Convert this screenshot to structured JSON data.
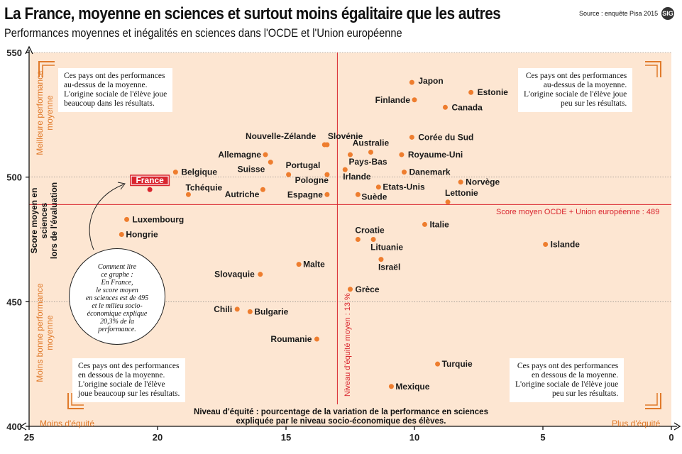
{
  "header": {
    "title": "La France, moyenne en sciences et surtout moins égalitaire que les autres",
    "subtitle": "Performances moyennes et inégalités en sciences dans l'OCDE et l'Union européenne",
    "source": "Source : enquête Pisa 2015",
    "logo": "SIG"
  },
  "quadrants": {
    "top_left": "Ces pays ont des performances\nau-dessus de la moyenne.\nL'origine sociale de l'élève joue\nbeaucoup dans les résultats.",
    "top_right": "Ces pays ont des performances\nau-dessus de la moyenne.\nL'origine sociale de l'élève joue\npeu sur les résultats.",
    "bottom_left": "Ces pays ont des performances\nen dessous de la moyenne.\nL'origine sociale de l'élève\njoue beaucoup sur les résultats.",
    "bottom_right": "Ces pays ont des performances\nen dessous de la moyenne.\nL'origine sociale de l'élève joue\npeu sur les résultats."
  },
  "howto": "Comment lire\nce graphe :\nEn France,\nle score moyen\nen sciences est de 495\net le milieu socio-\néconomique explique\n20,3% de la\nperformance.",
  "axis_labels": {
    "y_main": "Score moyen en sciences\nlors de l'évaluation",
    "y_top": "Meilleure performance\nmoyenne",
    "y_bottom": "Moins bonne performance\nmoyenne",
    "x_title": "Niveau d'équité : pourcentage de la variation de la performance en sciences\nexpliquée  par le niveau socio-économique des élèves.",
    "x_min": "Moins d'équité",
    "x_max": "Plus d'équité"
  },
  "reference": {
    "horizontal_label": "Score moyen OCDE + Union européenne : 489",
    "vertical_label": "Niveau d'équité moyen : 13 %"
  },
  "colors": {
    "background": "#fde6d2",
    "point": "#ee7d2e",
    "highlight": "#d9252e",
    "reference": "#d9252e",
    "accent": "#e07a2a"
  },
  "chart_data": {
    "type": "scatter",
    "title": "La France, moyenne en sciences et surtout moins égalitaire que les autres",
    "xlabel": "Niveau d'équité : pourcentage de la variation de la performance en sciences expliquée par le niveau socio-économique des élèves.",
    "ylabel": "Score moyen en sciences lors de l'évaluation",
    "xlim": [
      25,
      0
    ],
    "ylim": [
      400,
      550
    ],
    "x_ticks": [
      25,
      20,
      15,
      10,
      5,
      0
    ],
    "y_ticks": [
      400,
      450,
      500,
      550
    ],
    "grid": true,
    "reference_lines": {
      "x": 13,
      "y": 489
    },
    "points": [
      {
        "name": "Japon",
        "x": 10.1,
        "y": 538
      },
      {
        "name": "Estonie",
        "x": 7.8,
        "y": 534
      },
      {
        "name": "Finlande",
        "x": 10.0,
        "y": 531
      },
      {
        "name": "Canada",
        "x": 8.8,
        "y": 528
      },
      {
        "name": "Slovénie",
        "x": 13.4,
        "y": 513
      },
      {
        "name": "Corée du Sud",
        "x": 10.1,
        "y": 516
      },
      {
        "name": "Australie",
        "x": 11.7,
        "y": 510
      },
      {
        "name": "Nouvelle-Zélande",
        "x": 13.5,
        "y": 513
      },
      {
        "name": "Royaume-Uni",
        "x": 10.5,
        "y": 509
      },
      {
        "name": "Allemagne",
        "x": 15.8,
        "y": 509
      },
      {
        "name": "Pays-Bas",
        "x": 12.5,
        "y": 509
      },
      {
        "name": "Suisse",
        "x": 15.6,
        "y": 506
      },
      {
        "name": "Irlande",
        "x": 12.7,
        "y": 503
      },
      {
        "name": "Danemark",
        "x": 10.4,
        "y": 502
      },
      {
        "name": "Belgique",
        "x": 19.3,
        "y": 502
      },
      {
        "name": "Portugal",
        "x": 14.9,
        "y": 501
      },
      {
        "name": "Pologne",
        "x": 13.4,
        "y": 501
      },
      {
        "name": "Norvège",
        "x": 8.2,
        "y": 498
      },
      {
        "name": "France",
        "x": 20.3,
        "y": 495
      },
      {
        "name": "Etats-Unis",
        "x": 11.4,
        "y": 496
      },
      {
        "name": "Autriche",
        "x": 15.9,
        "y": 495
      },
      {
        "name": "Tchéquie",
        "x": 18.8,
        "y": 493
      },
      {
        "name": "Suède",
        "x": 12.2,
        "y": 493
      },
      {
        "name": "Espagne",
        "x": 13.4,
        "y": 493
      },
      {
        "name": "Lettonie",
        "x": 8.7,
        "y": 490
      },
      {
        "name": "Luxembourg",
        "x": 21.2,
        "y": 483
      },
      {
        "name": "Italie",
        "x": 9.6,
        "y": 481
      },
      {
        "name": "Hongrie",
        "x": 21.4,
        "y": 477
      },
      {
        "name": "Islande",
        "x": 4.9,
        "y": 473
      },
      {
        "name": "Croatie",
        "x": 12.2,
        "y": 475
      },
      {
        "name": "Lituanie",
        "x": 11.6,
        "y": 475
      },
      {
        "name": "Israël",
        "x": 11.3,
        "y": 467
      },
      {
        "name": "Malte",
        "x": 14.5,
        "y": 465
      },
      {
        "name": "Slovaquie",
        "x": 16.0,
        "y": 461
      },
      {
        "name": "Grèce",
        "x": 12.5,
        "y": 455
      },
      {
        "name": "Chili",
        "x": 16.9,
        "y": 447
      },
      {
        "name": "Bulgarie",
        "x": 16.4,
        "y": 446
      },
      {
        "name": "Roumanie",
        "x": 13.8,
        "y": 435
      },
      {
        "name": "Turquie",
        "x": 9.1,
        "y": 425
      },
      {
        "name": "Mexique",
        "x": 10.9,
        "y": 416
      }
    ]
  }
}
